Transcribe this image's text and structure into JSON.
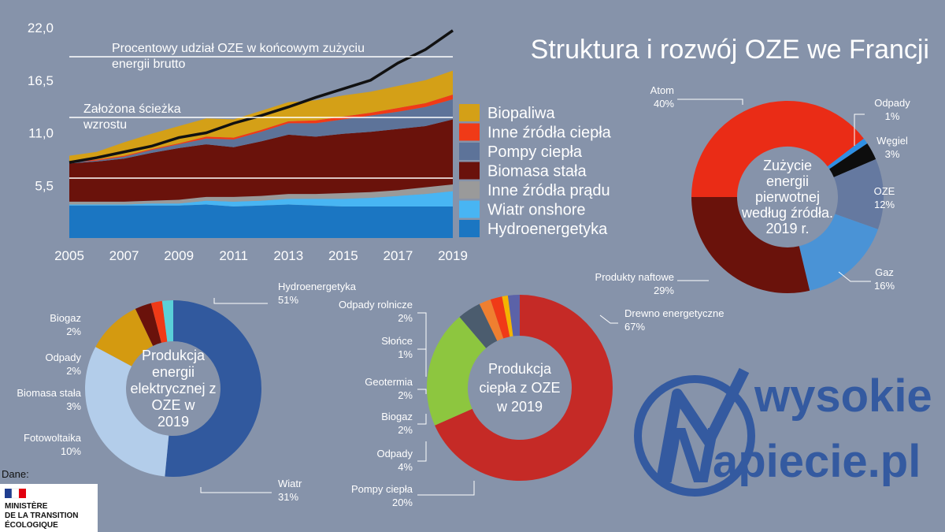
{
  "title": "Struktura i rozwój OZE we Francji",
  "colors": {
    "Biopaliwa": "#d4a017",
    "Inne źródła ciepła": "#f03a17",
    "Pompy ciepła": "#5d7399",
    "Biomasa stała": "#6a120b",
    "Inne źródła prądu": "#9a9a9a",
    "Wiatr onshore": "#48b5f3",
    "Hydroenergetyka": "#1b76c2",
    "share_line": "#111111"
  },
  "annotations": {
    "share_line_label_1": "Procentowy udział OZE w końcowym zużyciu",
    "share_line_label_2": "energii brutto",
    "path_label_1": "Założona ścieżka",
    "path_label_2": "wzrostu"
  },
  "source": {
    "label": "Dane:",
    "institution_line1": "MINISTÈRE",
    "institution_line2": "DE LA TRANSITION",
    "institution_line3": "ÉCOLOGIQUE"
  },
  "logo": {
    "text_top": "wysokie",
    "letter": "N",
    "text_bottom": "apiecie.pl"
  },
  "chart_data": [
    {
      "type": "area",
      "stacked": true,
      "x": [
        2005,
        2006,
        2007,
        2008,
        2009,
        2010,
        2011,
        2012,
        2013,
        2014,
        2015,
        2016,
        2017,
        2018,
        2019
      ],
      "x_ticks": [
        "2005",
        "2007",
        "2009",
        "2011",
        "2013",
        "2015",
        "2017",
        "2019"
      ],
      "y_ticks": [
        "5,5",
        "11,0",
        "16,5",
        "22,0"
      ],
      "ylim": [
        0,
        22
      ],
      "reference_lines": [
        {
          "label": "Procentowy udział OZE w końcowym zużyciu energii brutto",
          "value": 19
        },
        {
          "label": "Założona ścieżka wzrostu",
          "value": 12.8
        }
      ],
      "legend_position": "right",
      "series": [
        {
          "name": "Hydroenergetyka",
          "values": [
            3.4,
            3.4,
            3.4,
            3.4,
            3.4,
            3.5,
            3.3,
            3.4,
            3.5,
            3.4,
            3.3,
            3.3,
            3.3,
            3.3,
            3.3
          ]
        },
        {
          "name": "Wiatr onshore",
          "values": [
            0.1,
            0.1,
            0.1,
            0.2,
            0.2,
            0.4,
            0.5,
            0.5,
            0.6,
            0.7,
            0.8,
            0.9,
            1.1,
            1.3,
            1.6
          ]
        },
        {
          "name": "Inne źródła prądu",
          "values": [
            0.3,
            0.3,
            0.3,
            0.3,
            0.4,
            0.4,
            0.5,
            0.5,
            0.5,
            0.5,
            0.6,
            0.6,
            0.6,
            0.7,
            0.7
          ]
        },
        {
          "name": "Biomasa stała",
          "values": [
            4.0,
            4.2,
            4.5,
            5.0,
            5.4,
            5.5,
            5.2,
            5.7,
            6.2,
            6.0,
            6.2,
            6.3,
            6.4,
            6.4,
            6.8
          ]
        },
        {
          "name": "Pompy ciepła",
          "values": [
            0.1,
            0.1,
            0.2,
            0.3,
            0.4,
            0.6,
            0.8,
            1.0,
            1.2,
            1.4,
            1.5,
            1.7,
            1.8,
            2.0,
            2.1
          ]
        },
        {
          "name": "Inne źródła ciepła",
          "values": [
            0.1,
            0.1,
            0.1,
            0.1,
            0.1,
            0.2,
            0.2,
            0.2,
            0.2,
            0.3,
            0.3,
            0.3,
            0.4,
            0.4,
            0.5
          ]
        },
        {
          "name": "Biopaliwa",
          "values": [
            0.6,
            0.8,
            1.4,
            1.6,
            1.8,
            1.9,
            1.9,
            2.0,
            2.0,
            2.1,
            2.2,
            2.2,
            2.3,
            2.4,
            2.5
          ]
        }
      ],
      "line_series": {
        "values": [
          7.9,
          8.4,
          9.0,
          9.6,
          10.5,
          11.0,
          12.0,
          12.8,
          13.7,
          14.7,
          15.6,
          16.5,
          18.3,
          19.7,
          21.7
        ]
      }
    },
    {
      "type": "pie",
      "donut": true,
      "center_label": [
        "Zużycie",
        "energii",
        "pierwotnej",
        "według źródła.",
        "2019 r."
      ],
      "slices": [
        {
          "label": "Atom",
          "pct_label": "40%",
          "value": 40,
          "color": "#ea2c16"
        },
        {
          "label": "Odpady",
          "pct_label": "1%",
          "value": 1,
          "color": "#2f8fe3"
        },
        {
          "label": "Węgiel",
          "pct_label": "3%",
          "value": 3,
          "color": "#0d0d0d"
        },
        {
          "label": "OZE",
          "pct_label": "12%",
          "value": 12,
          "color": "#6579a0"
        },
        {
          "label": "Gaz",
          "pct_label": "16%",
          "value": 16,
          "color": "#4a93d6"
        },
        {
          "label": "Produkty naftowe",
          "pct_label": "29%",
          "value": 29,
          "color": "#6a120b"
        }
      ]
    },
    {
      "type": "pie",
      "donut": true,
      "center_label": [
        "Produkcja",
        "energii",
        "elektrycznej z",
        "OZE w",
        "2019"
      ],
      "slices": [
        {
          "label": "Hydroenergetyka",
          "pct_label": "51%",
          "value": 51,
          "color": "#31599e"
        },
        {
          "label": "Wiatr",
          "pct_label": "31%",
          "value": 31,
          "color": "#b3cdea"
        },
        {
          "label": "Fotowoltaika",
          "pct_label": "10%",
          "value": 10,
          "color": "#d49a10"
        },
        {
          "label": "Biomasa stała",
          "pct_label": "3%",
          "value": 3,
          "color": "#6a120b"
        },
        {
          "label": "Odpady",
          "pct_label": "2%",
          "value": 2,
          "color": "#f03a17"
        },
        {
          "label": "Biogaz",
          "pct_label": "2%",
          "value": 2,
          "color": "#5ad0d8"
        }
      ]
    },
    {
      "type": "pie",
      "donut": true,
      "center_label": [
        "Produkcja",
        "ciepła z OZE",
        "w 2019"
      ],
      "slices": [
        {
          "label": "Drewno energetyczne",
          "pct_label": "67%",
          "value": 67,
          "color": "#c52a26"
        },
        {
          "label": "Pompy ciepła",
          "pct_label": "20%",
          "value": 20,
          "color": "#8dc63f"
        },
        {
          "label": "Odpady",
          "pct_label": "4%",
          "value": 4,
          "color": "#4b5c6e"
        },
        {
          "label": "Biogaz",
          "pct_label": "2%",
          "value": 2,
          "color": "#ef7f30"
        },
        {
          "label": "Geotermia",
          "pct_label": "2%",
          "value": 2,
          "color": "#f03a17"
        },
        {
          "label": "Słońce",
          "pct_label": "1%",
          "value": 1,
          "color": "#f4b400"
        },
        {
          "label": "Odpady rolnicze",
          "pct_label": "2%",
          "value": 2,
          "color": "#5b62a8"
        }
      ]
    }
  ]
}
